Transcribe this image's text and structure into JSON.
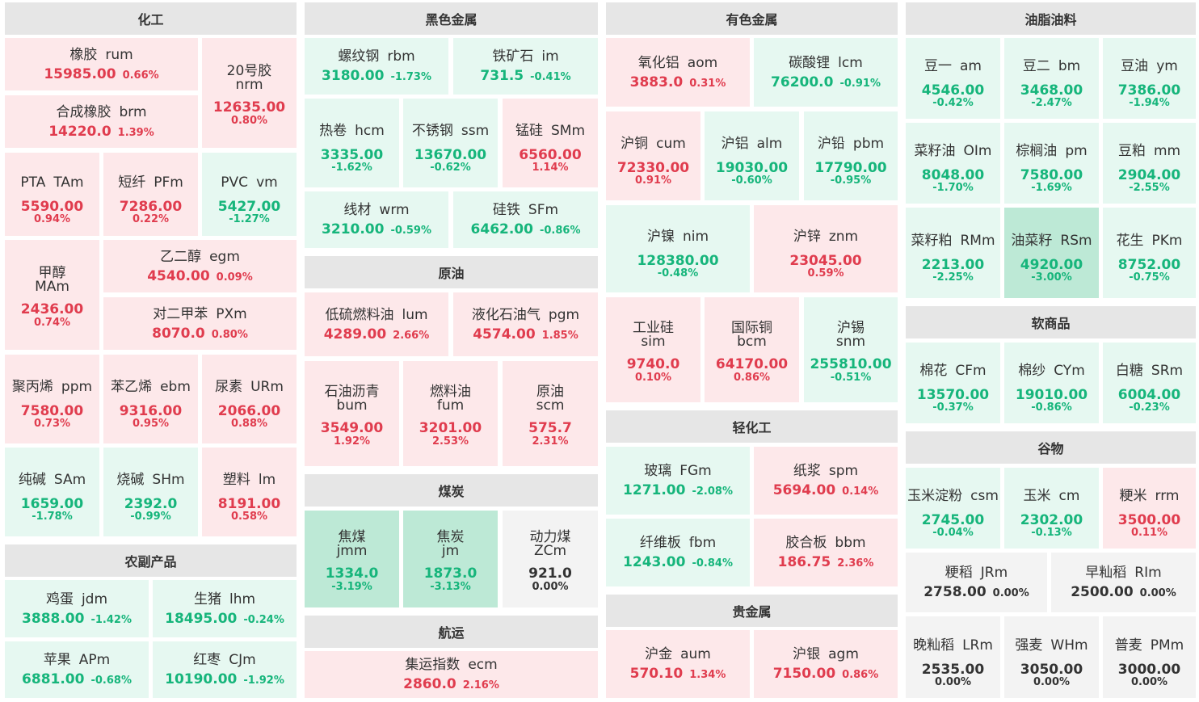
{
  "sections": {
    "chem": "化工",
    "ferrous": "黑色金属",
    "crude": "原油",
    "coal": "煤炭",
    "shipping": "航运",
    "nonferrous": "有色金属",
    "lightchem": "轻化工",
    "precious": "贵金属",
    "oils": "油脂油料",
    "softs": "软商品",
    "grains": "谷物",
    "agri": "农副产品"
  },
  "quotes": {
    "rum": {
      "name": "橡胶",
      "code": "rum",
      "price": "15985.00",
      "pct": "0.66%"
    },
    "nrm": {
      "name": "20号胶",
      "code": "nrm",
      "price": "12635.00",
      "pct": "0.80%"
    },
    "brm": {
      "name": "合成橡胶",
      "code": "brm",
      "price": "14220.0",
      "pct": "1.39%"
    },
    "tam": {
      "name": "PTA",
      "code": "TAm",
      "price": "5590.00",
      "pct": "0.94%"
    },
    "pfm": {
      "name": "短纤",
      "code": "PFm",
      "price": "7286.00",
      "pct": "0.22%"
    },
    "vm": {
      "name": "PVC",
      "code": "vm",
      "price": "5427.00",
      "pct": "-1.27%"
    },
    "mam": {
      "name": "甲醇",
      "code": "MAm",
      "price": "2436.00",
      "pct": "0.74%"
    },
    "egm": {
      "name": "乙二醇",
      "code": "egm",
      "price": "4540.00",
      "pct": "0.09%"
    },
    "pxm": {
      "name": "对二甲苯",
      "code": "PXm",
      "price": "8070.0",
      "pct": "0.80%"
    },
    "ppm": {
      "name": "聚丙烯",
      "code": "ppm",
      "price": "7580.00",
      "pct": "0.73%"
    },
    "ebm": {
      "name": "苯乙烯",
      "code": "ebm",
      "price": "9316.00",
      "pct": "0.95%"
    },
    "urm": {
      "name": "尿素",
      "code": "URm",
      "price": "2066.00",
      "pct": "0.88%"
    },
    "sam": {
      "name": "纯碱",
      "code": "SAm",
      "price": "1659.00",
      "pct": "-1.78%"
    },
    "shm": {
      "name": "烧碱",
      "code": "SHm",
      "price": "2392.0",
      "pct": "-0.99%"
    },
    "lm": {
      "name": "塑料",
      "code": "lm",
      "price": "8191.00",
      "pct": "0.58%"
    },
    "jdm": {
      "name": "鸡蛋",
      "code": "jdm",
      "price": "3888.00",
      "pct": "-1.42%"
    },
    "lhm": {
      "name": "生猪",
      "code": "lhm",
      "price": "18495.00",
      "pct": "-0.24%"
    },
    "apm": {
      "name": "苹果",
      "code": "APm",
      "price": "6881.00",
      "pct": "-0.68%"
    },
    "cjm": {
      "name": "红枣",
      "code": "CJm",
      "price": "10190.00",
      "pct": "-1.92%"
    },
    "rbm": {
      "name": "螺纹钢",
      "code": "rbm",
      "price": "3180.00",
      "pct": "-1.73%"
    },
    "im": {
      "name": "铁矿石",
      "code": "im",
      "price": "731.5",
      "pct": "-0.41%"
    },
    "hcm": {
      "name": "热卷",
      "code": "hcm",
      "price": "3335.00",
      "pct": "-1.62%"
    },
    "ssm": {
      "name": "不锈钢",
      "code": "ssm",
      "price": "13670.00",
      "pct": "-0.62%"
    },
    "smm": {
      "name": "锰硅",
      "code": "SMm",
      "price": "6560.00",
      "pct": "1.14%"
    },
    "wrm": {
      "name": "线材",
      "code": "wrm",
      "price": "3210.00",
      "pct": "-0.59%"
    },
    "sfm": {
      "name": "硅铁",
      "code": "SFm",
      "price": "6462.00",
      "pct": "-0.86%"
    },
    "lum": {
      "name": "低硫燃料油",
      "code": "lum",
      "price": "4289.00",
      "pct": "2.66%"
    },
    "pgm": {
      "name": "液化石油气",
      "code": "pgm",
      "price": "4574.00",
      "pct": "1.85%"
    },
    "bum": {
      "name": "石油沥青",
      "code": "bum",
      "price": "3549.00",
      "pct": "1.92%"
    },
    "fum": {
      "name": "燃料油",
      "code": "fum",
      "price": "3201.00",
      "pct": "2.53%"
    },
    "scm": {
      "name": "原油",
      "code": "scm",
      "price": "575.7",
      "pct": "2.31%"
    },
    "jmm": {
      "name": "焦煤",
      "code": "jmm",
      "price": "1334.0",
      "pct": "-3.19%"
    },
    "jm": {
      "name": "焦炭",
      "code": "jm",
      "price": "1873.0",
      "pct": "-3.13%"
    },
    "zcm": {
      "name": "动力煤",
      "code": "ZCm",
      "price": "921.0",
      "pct": "0.00%"
    },
    "ecm": {
      "name": "集运指数",
      "code": "ecm",
      "price": "2860.0",
      "pct": "2.16%"
    },
    "aom": {
      "name": "氧化铝",
      "code": "aom",
      "price": "3883.0",
      "pct": "0.31%"
    },
    "lcm": {
      "name": "碳酸锂",
      "code": "lcm",
      "price": "76200.0",
      "pct": "-0.91%"
    },
    "cum": {
      "name": "沪铜",
      "code": "cum",
      "price": "72330.00",
      "pct": "0.91%"
    },
    "alm": {
      "name": "沪铝",
      "code": "alm",
      "price": "19030.00",
      "pct": "-0.60%"
    },
    "pbm": {
      "name": "沪铅",
      "code": "pbm",
      "price": "17790.00",
      "pct": "-0.95%"
    },
    "nim": {
      "name": "沪镍",
      "code": "nim",
      "price": "128380.00",
      "pct": "-0.48%"
    },
    "znm": {
      "name": "沪锌",
      "code": "znm",
      "price": "23045.00",
      "pct": "0.59%"
    },
    "sim": {
      "name": "工业硅",
      "code": "sim",
      "price": "9740.0",
      "pct": "0.10%"
    },
    "bcm": {
      "name": "国际铜",
      "code": "bcm",
      "price": "64170.00",
      "pct": "0.86%"
    },
    "snm": {
      "name": "沪锡",
      "code": "snm",
      "price": "255810.00",
      "pct": "-0.51%"
    },
    "fgm": {
      "name": "玻璃",
      "code": "FGm",
      "price": "1271.00",
      "pct": "-2.08%"
    },
    "spm": {
      "name": "纸浆",
      "code": "spm",
      "price": "5694.00",
      "pct": "0.14%"
    },
    "fbm": {
      "name": "纤维板",
      "code": "fbm",
      "price": "1243.00",
      "pct": "-0.84%"
    },
    "bbm": {
      "name": "胶合板",
      "code": "bbm",
      "price": "186.75",
      "pct": "2.36%"
    },
    "aum": {
      "name": "沪金",
      "code": "aum",
      "price": "570.10",
      "pct": "1.34%"
    },
    "agm": {
      "name": "沪银",
      "code": "agm",
      "price": "7150.00",
      "pct": "0.86%"
    },
    "am": {
      "name": "豆一",
      "code": "am",
      "price": "4546.00",
      "pct": "-0.42%"
    },
    "bm": {
      "name": "豆二",
      "code": "bm",
      "price": "3468.00",
      "pct": "-2.47%"
    },
    "ym": {
      "name": "豆油",
      "code": "ym",
      "price": "7386.00",
      "pct": "-1.94%"
    },
    "oim": {
      "name": "菜籽油",
      "code": "OIm",
      "price": "8048.00",
      "pct": "-1.70%"
    },
    "pm": {
      "name": "棕榈油",
      "code": "pm",
      "price": "7580.00",
      "pct": "-1.69%"
    },
    "mm": {
      "name": "豆粕",
      "code": "mm",
      "price": "2904.00",
      "pct": "-2.55%"
    },
    "rmm": {
      "name": "菜籽粕",
      "code": "RMm",
      "price": "2213.00",
      "pct": "-2.25%"
    },
    "rsm": {
      "name": "油菜籽",
      "code": "RSm",
      "price": "4920.00",
      "pct": "-3.00%"
    },
    "pkm": {
      "name": "花生",
      "code": "PKm",
      "price": "8752.00",
      "pct": "-0.75%"
    },
    "cfm": {
      "name": "棉花",
      "code": "CFm",
      "price": "13570.00",
      "pct": "-0.37%"
    },
    "cym": {
      "name": "棉纱",
      "code": "CYm",
      "price": "19010.00",
      "pct": "-0.86%"
    },
    "srm": {
      "name": "白糖",
      "code": "SRm",
      "price": "6004.00",
      "pct": "-0.23%"
    },
    "csm": {
      "name": "玉米淀粉",
      "code": "csm",
      "price": "2745.00",
      "pct": "-0.04%"
    },
    "cm": {
      "name": "玉米",
      "code": "cm",
      "price": "2302.00",
      "pct": "-0.13%"
    },
    "rrm": {
      "name": "粳米",
      "code": "rrm",
      "price": "3500.00",
      "pct": "0.11%"
    },
    "jrm": {
      "name": "粳稻",
      "code": "JRm",
      "price": "2758.00",
      "pct": "0.00%"
    },
    "rim": {
      "name": "早籼稻",
      "code": "RIm",
      "price": "2500.00",
      "pct": "0.00%"
    },
    "lrm": {
      "name": "晚籼稻",
      "code": "LRm",
      "price": "2535.00",
      "pct": "0.00%"
    },
    "whm": {
      "name": "强麦",
      "code": "WHm",
      "price": "3050.00",
      "pct": "0.00%"
    },
    "pmm": {
      "name": "普麦",
      "code": "PMm",
      "price": "3000.00",
      "pct": "0.00%"
    }
  }
}
